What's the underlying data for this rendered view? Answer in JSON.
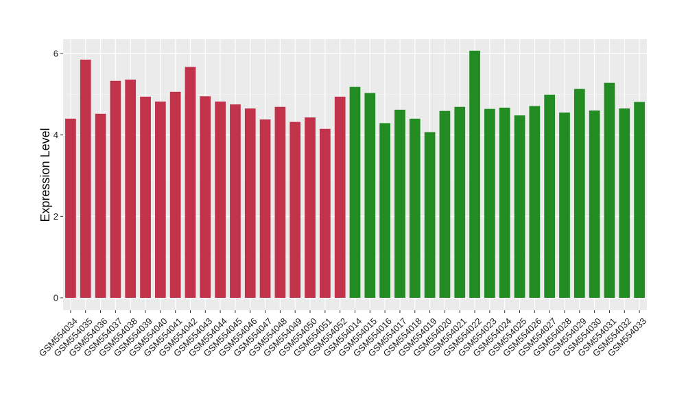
{
  "chart_data": {
    "type": "bar",
    "title": "",
    "xlabel": "",
    "ylabel": "Expression Level",
    "ylim": [
      0,
      6.35
    ],
    "yticks": [
      0,
      2,
      4,
      6
    ],
    "ytick_labels": [
      "0",
      "2",
      "4",
      "6"
    ],
    "grid": true,
    "legend": "none",
    "categories": [
      "GSM554034",
      "GSM554035",
      "GSM554036",
      "GSM554037",
      "GSM554038",
      "GSM554039",
      "GSM554040",
      "GSM554041",
      "GSM554042",
      "GSM554043",
      "GSM554044",
      "GSM554045",
      "GSM554046",
      "GSM554047",
      "GSM554048",
      "GSM554049",
      "GSM554050",
      "GSM554051",
      "GSM554052",
      "GSM554014",
      "GSM554015",
      "GSM554016",
      "GSM554017",
      "GSM554018",
      "GSM554019",
      "GSM554020",
      "GSM554021",
      "GSM554022",
      "GSM554023",
      "GSM554024",
      "GSM554025",
      "GSM554026",
      "GSM554027",
      "GSM554028",
      "GSM554029",
      "GSM554030",
      "GSM554031",
      "GSM554032",
      "GSM554033"
    ],
    "values": [
      4.4,
      5.85,
      4.52,
      5.33,
      5.36,
      4.94,
      4.82,
      5.06,
      5.67,
      4.95,
      4.82,
      4.75,
      4.65,
      4.38,
      4.69,
      4.32,
      4.43,
      4.15,
      4.94,
      5.18,
      5.03,
      4.29,
      4.62,
      4.4,
      4.07,
      4.59,
      4.69,
      6.07,
      4.64,
      4.67,
      4.48,
      4.71,
      4.99,
      4.55,
      5.13,
      4.6,
      5.28,
      4.65,
      4.81
    ],
    "groups": [
      "red",
      "red",
      "red",
      "red",
      "red",
      "red",
      "red",
      "red",
      "red",
      "red",
      "red",
      "red",
      "red",
      "red",
      "red",
      "red",
      "red",
      "red",
      "red",
      "green",
      "green",
      "green",
      "green",
      "green",
      "green",
      "green",
      "green",
      "green",
      "green",
      "green",
      "green",
      "green",
      "green",
      "green",
      "green",
      "green",
      "green",
      "green",
      "green"
    ],
    "colors": {
      "red": "#c0334a",
      "green": "#228b22",
      "panel": "#ebebeb",
      "grid_major": "#ffffff",
      "grid_minor": "#f5f5f5"
    }
  }
}
